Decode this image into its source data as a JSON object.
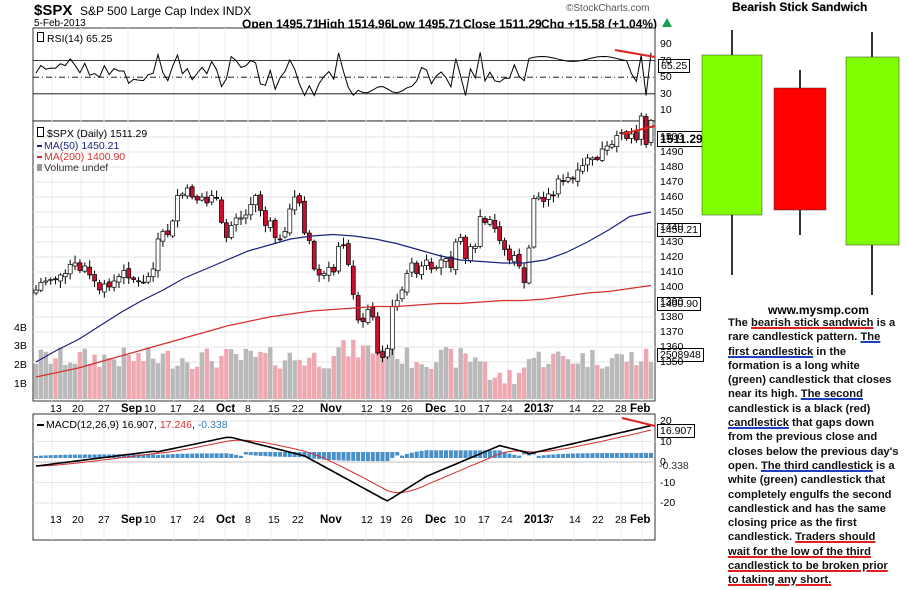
{
  "header": {
    "symbol": "$SPX",
    "name": "S&P 500 Large Cap Index INDX",
    "date": "5-Feb-2013",
    "open": "Open 1495.71",
    "high": "High 1514.96",
    "low": "Low 1495.71",
    "close": "Close 1511.29",
    "chg": "Chg +15.58 (+1.04%)",
    "chg_arrow": "up-arrow",
    "brand": "©StockCharts.com"
  },
  "rsi": {
    "label": "RSI(14) 65.25",
    "value_box": "65.25",
    "ticks": [
      "90",
      "70",
      "50",
      "30",
      "10"
    ]
  },
  "main": {
    "legend_main": "$SPX (Daily) 1511.29",
    "legend_ma50": "MA(50) 1450.21",
    "legend_ma200": "MA(200) 1400.90",
    "legend_vol": "Volume undef",
    "price_box": "1511.29",
    "ma50_box": "1450.21",
    "ma200_box": "1400.90",
    "volume_box": "2508948",
    "price_ticks": [
      "1500",
      "1490",
      "1480",
      "1470",
      "1460",
      "1450",
      "1440",
      "1430",
      "1420",
      "1410",
      "1400",
      "1390",
      "1380",
      "1370",
      "1360",
      "1350"
    ],
    "volume_ticks": [
      "4B",
      "3B",
      "2B",
      "1B"
    ],
    "colors": {
      "up": "#ffffff",
      "down": "#c8102e",
      "ma50": "#1a237e",
      "ma200": "#d32f2f"
    }
  },
  "x_labels": [
    "13",
    "20",
    "27",
    "Sep",
    "10",
    "17",
    "24",
    "Oct",
    "8",
    "15",
    "22",
    "Nov",
    "12",
    "19",
    "26",
    "Dec",
    "10",
    "17",
    "24",
    "2013",
    "7",
    "14",
    "22",
    "28",
    "Feb"
  ],
  "macd": {
    "label_prefix": "MACD(12,26,9)",
    "macd_value": "16.907",
    "signal_value": "17.246",
    "hist_value": "-0.338",
    "value_box": "16.907",
    "hist_box": "-0.338",
    "ticks": [
      "20",
      "10",
      "0",
      "-10",
      "-20"
    ],
    "colors": {
      "macd": "#000000",
      "signal": "#d32f2f",
      "hist": "#4a90c8"
    }
  },
  "pattern": {
    "title": "Bearish Stick Sandwich",
    "website": "www.mysmp.com",
    "colors": {
      "green": "#7fff00",
      "red": "#ff0000"
    }
  },
  "description": [
    {
      "t": "The ",
      "s": ""
    },
    {
      "t": "bearish stick sandwich",
      "s": "ur"
    },
    {
      "t": " is a rare candlestick pattern. ",
      "s": ""
    },
    {
      "t": "The first candlestick",
      "s": "ub"
    },
    {
      "t": " in the formation is a long white (green) candlestick that closes near its high. ",
      "s": ""
    },
    {
      "t": "The second",
      "s": "ub"
    },
    {
      "t": " candlestick is a black (red) ",
      "s": ""
    },
    {
      "t": "candlestick",
      "s": "ub"
    },
    {
      "t": " that gaps down from the previous close and closes below the previous day's open. ",
      "s": ""
    },
    {
      "t": "The third candlestick",
      "s": "ub"
    },
    {
      "t": " is a white (green) candlestick that completely engulfs the second candlestick and has the same closing price as the first candlestick. ",
      "s": ""
    },
    {
      "t": "Traders should wait for the low of the third candlestick to be broken prior to taking any short.",
      "s": "ur"
    }
  ],
  "chart_data": {
    "type": "line",
    "title": "$SPX S&P 500 Large Cap Index INDX",
    "xlabel": "",
    "ylabel": "",
    "ylim": [
      1345,
      1515
    ],
    "series": [
      {
        "name": "$SPX (Daily)",
        "values": [
          1398,
          1403,
          1404,
          1405,
          1405,
          1408,
          1409,
          1415,
          1416,
          1411,
          1414,
          1408,
          1404,
          1398,
          1402,
          1400,
          1404,
          1407,
          1411,
          1406,
          1405,
          1404,
          1403,
          1407,
          1412,
          1432,
          1437,
          1435,
          1444,
          1461,
          1462,
          1466,
          1460,
          1458,
          1460,
          1456,
          1461,
          1459,
          1443,
          1433,
          1441,
          1446,
          1446,
          1448,
          1455,
          1461,
          1451,
          1441,
          1444,
          1433,
          1432,
          1437,
          1452,
          1460,
          1456,
          1436,
          1431,
          1412,
          1408,
          1409,
          1413,
          1410,
          1427,
          1428,
          1415,
          1395,
          1378,
          1377,
          1385,
          1380,
          1356,
          1353,
          1359,
          1387,
          1391,
          1398,
          1409,
          1416,
          1409,
          1414,
          1418,
          1412,
          1413,
          1418,
          1419,
          1413,
          1430,
          1433,
          1419,
          1427,
          1427,
          1447,
          1443,
          1445,
          1439,
          1431,
          1425,
          1418,
          1421,
          1414,
          1403,
          1426,
          1459,
          1460,
          1457,
          1462,
          1461,
          1472,
          1471,
          1473,
          1472,
          1478,
          1481,
          1486,
          1486,
          1485,
          1492,
          1494,
          1495,
          1501,
          1503,
          1499,
          1502,
          1498,
          1514,
          1495,
          1511
        ]
      },
      {
        "name": "MA(50)",
        "values": [
          1350,
          1358,
          1365,
          1374,
          1383,
          1391,
          1398,
          1406,
          1412,
          1418,
          1424,
          1428,
          1432,
          1434,
          1435,
          1434,
          1432,
          1429,
          1425,
          1421,
          1418,
          1417,
          1416,
          1416,
          1418,
          1423,
          1430,
          1438,
          1447,
          1450
        ]
      },
      {
        "name": "MA(200)",
        "values": [
          1340,
          1343,
          1346,
          1350,
          1354,
          1358,
          1362,
          1366,
          1370,
          1374,
          1377,
          1380,
          1382,
          1384,
          1385,
          1386,
          1387,
          1387,
          1388,
          1389,
          1389,
          1390,
          1391,
          1391,
          1392,
          1394,
          1396,
          1397,
          1399,
          1401
        ]
      }
    ]
  }
}
